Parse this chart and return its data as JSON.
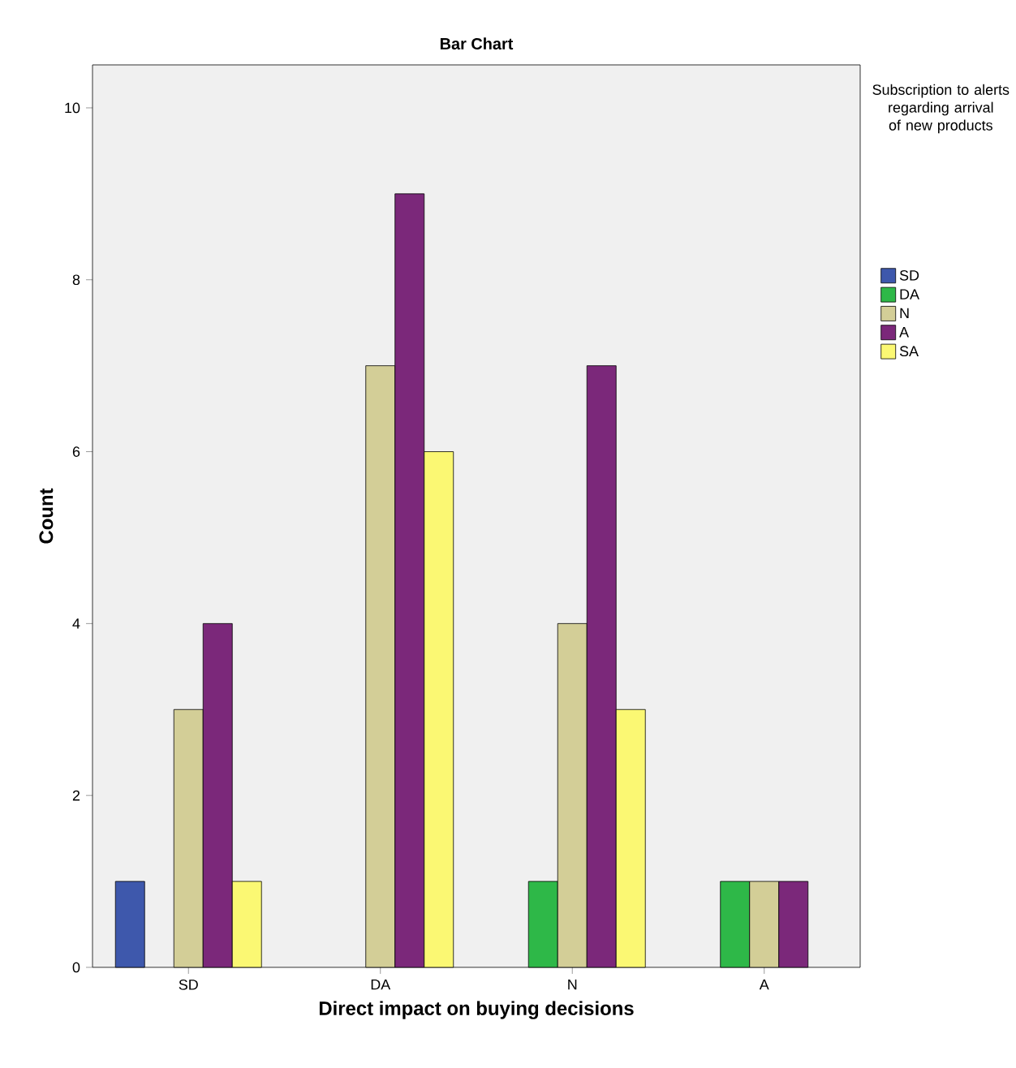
{
  "chart_data": {
    "type": "bar",
    "title": "Bar Chart",
    "xlabel": "Direct impact on buying decisions",
    "ylabel": "Count",
    "legend_title": "Subscription to alerts regarding arrival of new products",
    "categories": [
      "SD",
      "DA",
      "N",
      "A"
    ],
    "series": [
      {
        "name": "SD",
        "color": "#3e58ac",
        "values": [
          1,
          null,
          null,
          null
        ]
      },
      {
        "name": "DA",
        "color": "#2eb848",
        "values": [
          null,
          null,
          1,
          1
        ]
      },
      {
        "name": "N",
        "color": "#d3ce97",
        "values": [
          3,
          7,
          4,
          1
        ]
      },
      {
        "name": "A",
        "color": "#7b287a",
        "values": [
          4,
          9,
          7,
          1
        ]
      },
      {
        "name": "SA",
        "color": "#fbf873",
        "values": [
          1,
          6,
          3,
          null
        ]
      }
    ],
    "ylim": [
      0,
      10.5
    ],
    "yticks": [
      0,
      2,
      4,
      6,
      8,
      10
    ],
    "grid": false,
    "legend": "right"
  }
}
